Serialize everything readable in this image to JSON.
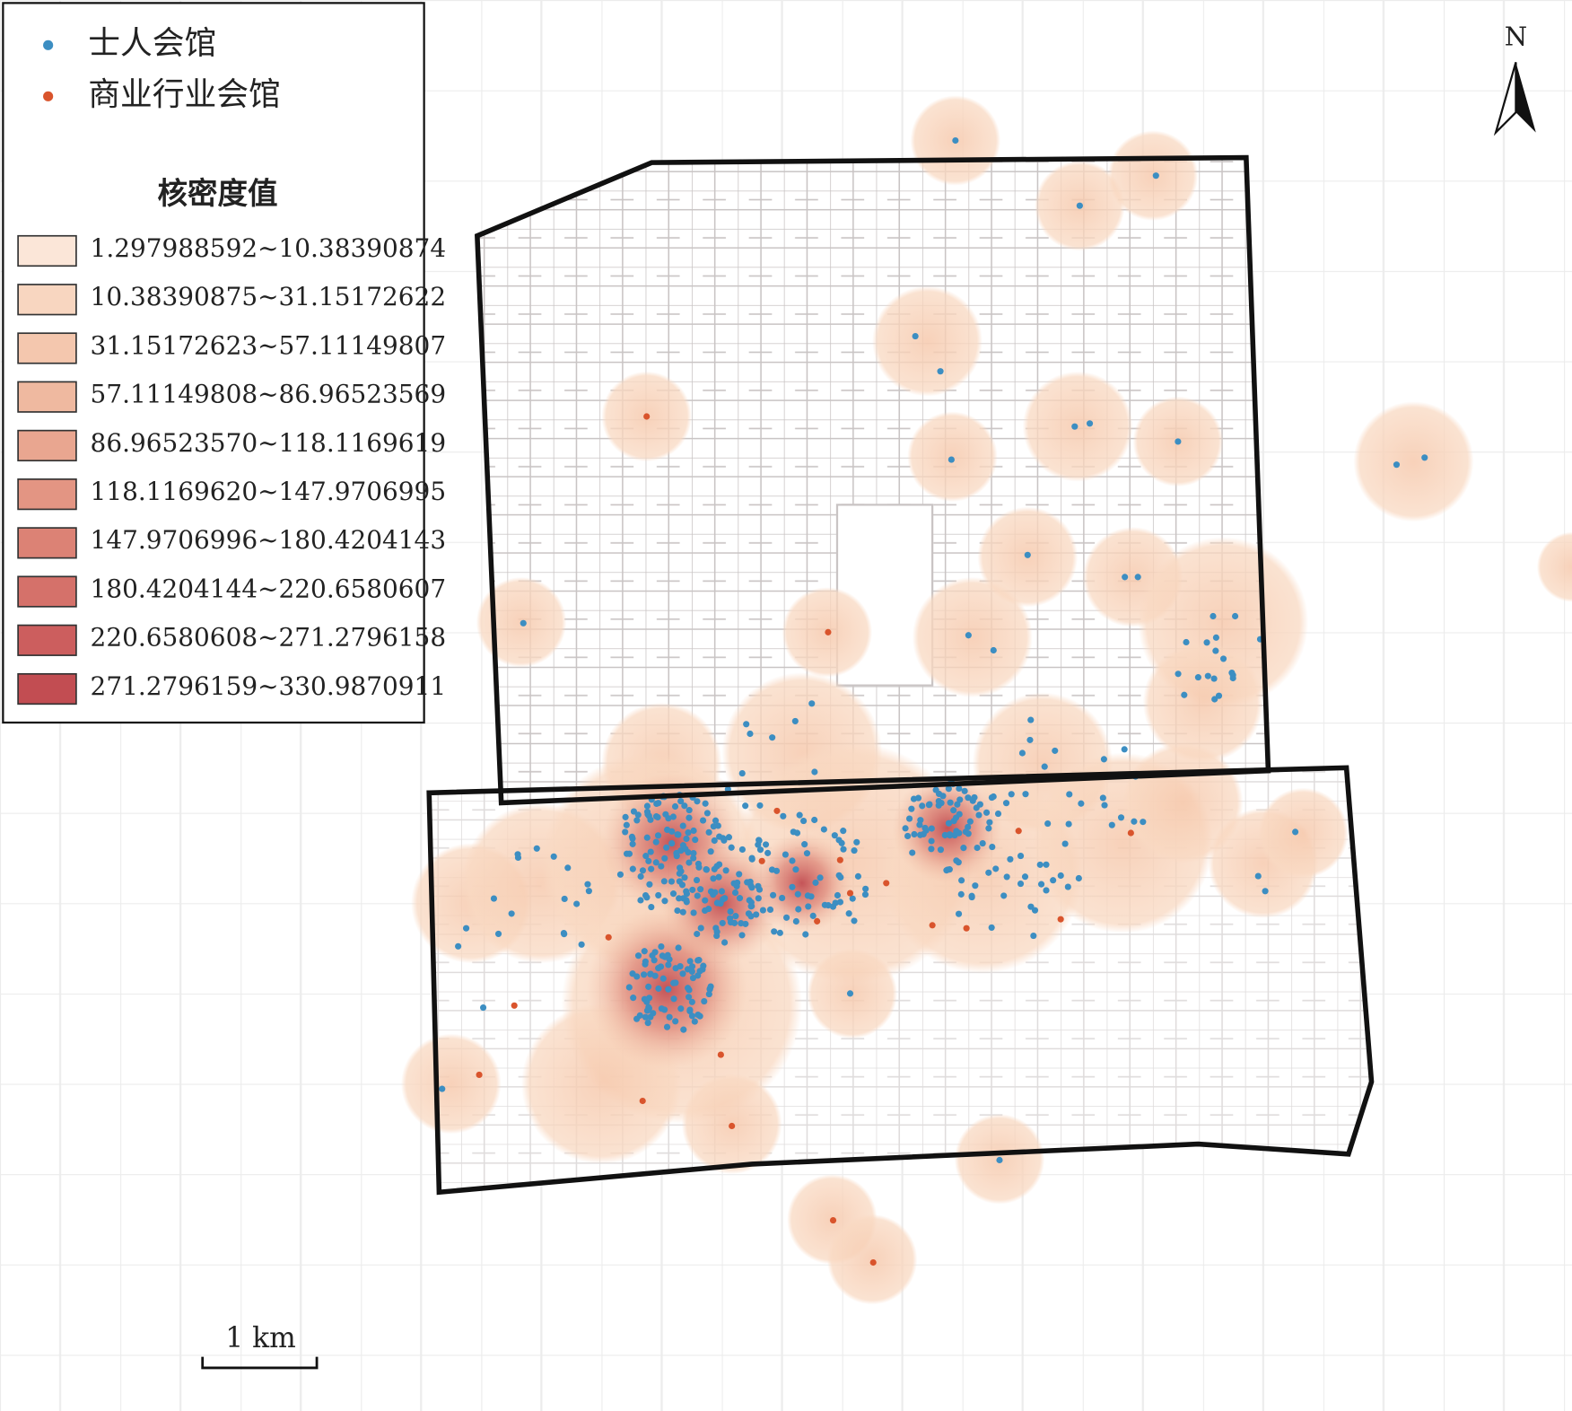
{
  "legend": {
    "items": [
      {
        "label": "士人会馆",
        "color": "#3c8ec2"
      },
      {
        "label": "商业行业会馆",
        "color": "#d9542c"
      }
    ],
    "density_title": "核密度值",
    "classes": [
      {
        "label": "1.297988592~10.38390874",
        "color": "#fbe6d8"
      },
      {
        "label": "10.38390875~31.15172622",
        "color": "#f8d6c0"
      },
      {
        "label": "31.15172623~57.11149807",
        "color": "#f4c7ae"
      },
      {
        "label": "57.11149808~86.96523569",
        "color": "#efb9a0"
      },
      {
        "label": "86.96523570~118.1169619",
        "color": "#e9a690"
      },
      {
        "label": "118.1169620~147.9706995",
        "color": "#e39583"
      },
      {
        "label": "147.9706996~180.4204143",
        "color": "#dc8275"
      },
      {
        "label": "180.4204144~220.6580607",
        "color": "#d5716a"
      },
      {
        "label": "220.6580608~271.2796158",
        "color": "#cc5e5e"
      },
      {
        "label": "271.2796159~330.9870911",
        "color": "#c24d52"
      }
    ]
  },
  "north_label": "N",
  "scale_label": "1 km"
}
